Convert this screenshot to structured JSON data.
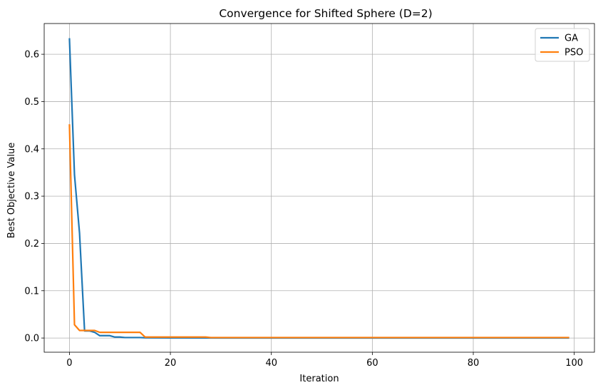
{
  "chart_data": {
    "type": "line",
    "title": "Convergence for Shifted Sphere (D=2)",
    "xlabel": "Iteration",
    "ylabel": "Best Objective Value",
    "xlim": [
      -5,
      104
    ],
    "ylim": [
      -0.03,
      0.665
    ],
    "xticks": [
      0,
      20,
      40,
      60,
      80,
      100
    ],
    "yticks": [
      0.0,
      0.1,
      0.2,
      0.3,
      0.4,
      0.5,
      0.6
    ],
    "ytick_labels": [
      "0.0",
      "0.1",
      "0.2",
      "0.3",
      "0.4",
      "0.5",
      "0.6"
    ],
    "grid": true,
    "legend_position": "top-right",
    "series": [
      {
        "name": "GA",
        "color": "#1f77b4",
        "points": [
          [
            0,
            0.634
          ],
          [
            1,
            0.345
          ],
          [
            2,
            0.222
          ],
          [
            3,
            0.015
          ],
          [
            4,
            0.015
          ],
          [
            5,
            0.012
          ],
          [
            6,
            0.005
          ],
          [
            7,
            0.005
          ],
          [
            8,
            0.005
          ],
          [
            9,
            0.002
          ],
          [
            10,
            0.002
          ],
          [
            11,
            0.001
          ],
          [
            12,
            0.001
          ],
          [
            13,
            0.001
          ],
          [
            14,
            0.001
          ],
          [
            15,
            0.0005
          ],
          [
            20,
            0.0003
          ],
          [
            30,
            0.0002
          ],
          [
            50,
            0.0001
          ],
          [
            99,
            0.0001
          ]
        ]
      },
      {
        "name": "PSO",
        "color": "#ff7f0e",
        "points": [
          [
            0,
            0.452
          ],
          [
            1,
            0.028
          ],
          [
            2,
            0.016
          ],
          [
            3,
            0.016
          ],
          [
            4,
            0.016
          ],
          [
            5,
            0.016
          ],
          [
            6,
            0.012
          ],
          [
            7,
            0.012
          ],
          [
            8,
            0.012
          ],
          [
            9,
            0.012
          ],
          [
            10,
            0.012
          ],
          [
            11,
            0.012
          ],
          [
            12,
            0.012
          ],
          [
            13,
            0.012
          ],
          [
            14,
            0.012
          ],
          [
            15,
            0.002
          ],
          [
            20,
            0.002
          ],
          [
            27,
            0.002
          ],
          [
            28,
            0.001
          ],
          [
            99,
            0.001
          ]
        ]
      }
    ]
  }
}
